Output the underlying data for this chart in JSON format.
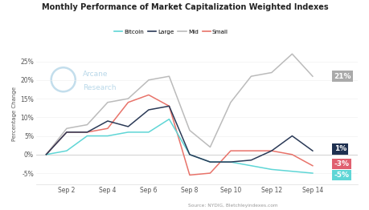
{
  "title": "Monthly Performance of Market Capitalization Weighted Indexes",
  "ylabel": "Percentage Change",
  "source": "Source: NYDIG, Bletchleyindexes.com",
  "xtick_labels": [
    "Sep 2",
    "Sep 4",
    "Sep 6",
    "Sep 8",
    "Sep 10",
    "Sep 12",
    "Sep 14"
  ],
  "bitcoin": [
    0,
    1,
    5,
    5,
    6,
    6,
    9.5,
    0,
    -2,
    -2,
    -3,
    -4,
    -4.5,
    -5
  ],
  "large": [
    0,
    6,
    6,
    9,
    7.5,
    12,
    13,
    0,
    -2,
    -2,
    -1.5,
    1,
    5,
    1
  ],
  "mid": [
    0,
    7,
    8,
    14,
    15,
    20,
    21,
    6.5,
    2,
    14,
    21,
    22,
    27,
    21
  ],
  "small": [
    0,
    6,
    6,
    7,
    14,
    16,
    13,
    -5.5,
    -5,
    1,
    1,
    1,
    0,
    -3
  ],
  "color_bitcoin": "#5FD6D6",
  "color_large": "#2B3A57",
  "color_mid": "#BBBBBB",
  "color_small": "#E8736A",
  "color_large_box": "#1E3050",
  "color_small_box": "#E06070",
  "color_bitcoin_box": "#5FD6D6",
  "color_mid_box": "#AAAAAA",
  "ylim": [
    -8,
    30
  ],
  "yticks": [
    -5,
    0,
    5,
    10,
    15,
    20,
    25
  ],
  "background_color": "#FFFFFF",
  "watermark_color": "#9CC8E0",
  "watermark_text1": "Arcane",
  "watermark_text2": "Research"
}
